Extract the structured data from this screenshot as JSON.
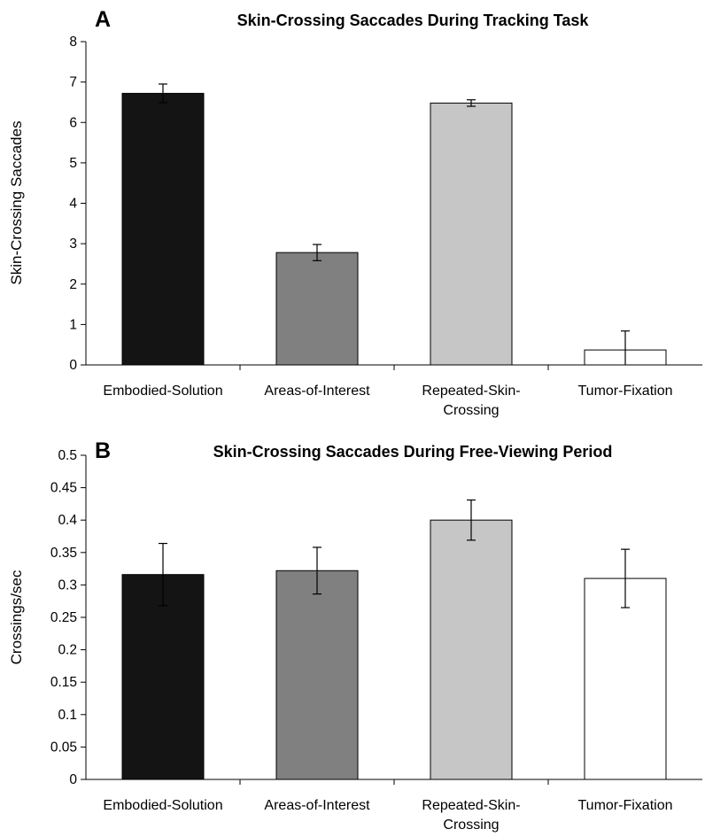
{
  "chart_data": [
    {
      "panel_label": "A",
      "type": "bar",
      "title": "Skin-Crossing Saccades During Tracking Task",
      "xlabel": "",
      "ylabel": "Skin-Crossing Saccades",
      "categories": [
        "Embodied-Solution",
        "Areas-of-Interest",
        "Repeated-Skin-Crossing",
        "Tumor-Fixation"
      ],
      "category_lines": [
        [
          "Embodied-Solution"
        ],
        [
          "Areas-of-Interest"
        ],
        [
          "Repeated-Skin-",
          "Crossing"
        ],
        [
          "Tumor-Fixation"
        ]
      ],
      "values": [
        6.72,
        2.78,
        6.48,
        0.37
      ],
      "errors": [
        0.23,
        0.2,
        0.08,
        0.47
      ],
      "bar_colors": [
        "#141414",
        "#808080",
        "#c6c6c6",
        "#ffffff"
      ],
      "ylim": [
        0,
        8
      ],
      "yticks": [
        0,
        1,
        2,
        3,
        4,
        5,
        6,
        7,
        8
      ],
      "ytick_labels": [
        "0",
        "1",
        "2",
        "3",
        "4",
        "5",
        "6",
        "7",
        "8"
      ],
      "grid": false,
      "legend": "none"
    },
    {
      "panel_label": "B",
      "type": "bar",
      "title": "Skin-Crossing Saccades During Free-Viewing Period",
      "xlabel": "",
      "ylabel": "Crossings/sec",
      "categories": [
        "Embodied-Solution",
        "Areas-of-Interest",
        "Repeated-Skin-Crossing",
        "Tumor-Fixation"
      ],
      "category_lines": [
        [
          "Embodied-Solution"
        ],
        [
          "Areas-of-Interest"
        ],
        [
          "Repeated-Skin-",
          "Crossing"
        ],
        [
          "Tumor-Fixation"
        ]
      ],
      "values": [
        0.316,
        0.322,
        0.4,
        0.31
      ],
      "errors": [
        0.048,
        0.036,
        0.031,
        0.045
      ],
      "bar_colors": [
        "#141414",
        "#808080",
        "#c6c6c6",
        "#ffffff"
      ],
      "ylim": [
        0,
        0.5
      ],
      "yticks": [
        0,
        0.05,
        0.1,
        0.15,
        0.2,
        0.25,
        0.3,
        0.35,
        0.4,
        0.45,
        0.5
      ],
      "ytick_labels": [
        "0",
        "0.05",
        "0.1",
        "0.15",
        "0.2",
        "0.25",
        "0.3",
        "0.35",
        "0.4",
        "0.45",
        "0.5"
      ],
      "grid": false,
      "legend": "none"
    }
  ]
}
